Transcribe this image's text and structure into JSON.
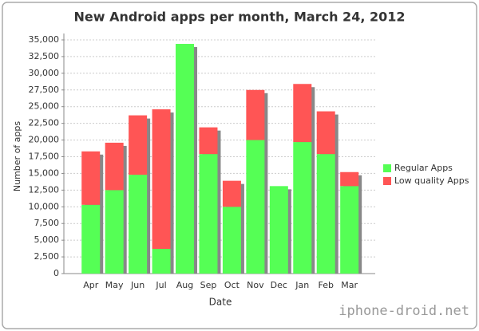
{
  "chart_data": {
    "type": "stacked_bar",
    "title": "New Android apps per month, March 24, 2012",
    "x_label": "Date",
    "y_label": "Number of apps",
    "categories": [
      "Apr",
      "May",
      "Jun",
      "Jul",
      "Aug",
      "Sep",
      "Oct",
      "Nov",
      "Dec",
      "Jan",
      "Feb",
      "Mar"
    ],
    "series": [
      {
        "name": "Regular Apps",
        "color": "#55ff55",
        "values": [
          10300,
          12500,
          14800,
          3700,
          34400,
          17900,
          10000,
          20000,
          13100,
          19700,
          17900,
          13100
        ]
      },
      {
        "name": "Low quality Apps",
        "color": "#ff5555",
        "values": [
          8000,
          7100,
          8900,
          20900,
          0,
          4000,
          3900,
          7500,
          0,
          8700,
          6400,
          2100
        ]
      }
    ],
    "ylim": [
      0,
      35000
    ],
    "yticks": [
      0,
      {
        "value": 2500,
        "label": "2,500"
      },
      {
        "value": 5000,
        "label": "5,000"
      },
      {
        "value": 7500,
        "label": "7,500"
      },
      {
        "value": 10000,
        "label": "10,000"
      },
      {
        "value": 12500,
        "label": "12,500"
      },
      {
        "value": 15000,
        "label": "15,000"
      },
      {
        "value": 17500,
        "label": "17,500"
      },
      {
        "value": 20000,
        "label": "20,000"
      },
      {
        "value": 22500,
        "label": "22,500"
      },
      {
        "value": 25000,
        "label": "25,000"
      },
      {
        "value": 27500,
        "label": "27,500"
      },
      {
        "value": 30000,
        "label": "30,000"
      },
      {
        "value": 32500,
        "label": "32,500"
      },
      {
        "value": 35000,
        "label": "35,000"
      }
    ],
    "grid": true,
    "legend": "right",
    "watermark": "iphone-droid.net"
  }
}
